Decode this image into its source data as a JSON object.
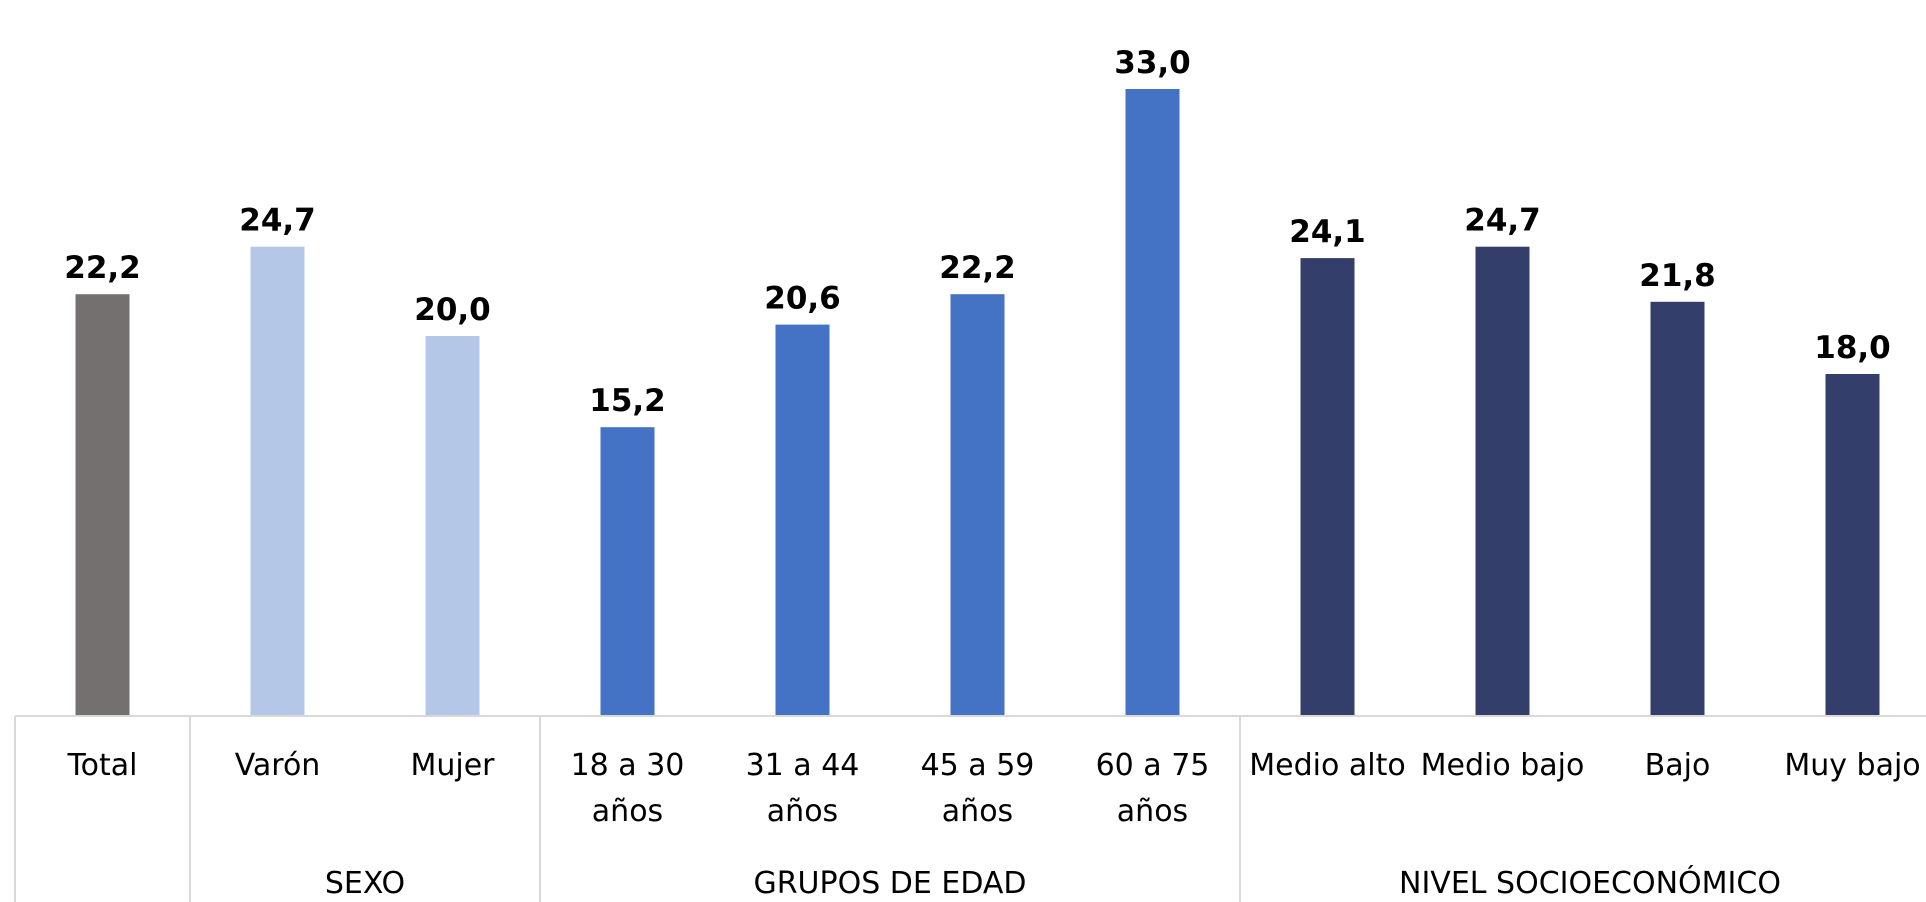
{
  "chart_data": {
    "type": "bar",
    "title": "",
    "xlabel": "",
    "ylabel": "",
    "ylim": [
      0,
      35
    ],
    "grid": false,
    "legend": "none",
    "categories": [
      {
        "label": [
          "Total"
        ],
        "value": 22.2,
        "value_label": "22,2",
        "color": "#757070",
        "group": null
      },
      {
        "label": [
          "Varón"
        ],
        "value": 24.7,
        "value_label": "24,7",
        "color": "#b4c7e7",
        "group": "SEXO"
      },
      {
        "label": [
          "Mujer"
        ],
        "value": 20.0,
        "value_label": "20,0",
        "color": "#b4c7e7",
        "group": "SEXO"
      },
      {
        "label": [
          "18 a 30",
          "años"
        ],
        "value": 15.2,
        "value_label": "15,2",
        "color": "#4472c4",
        "group": "GRUPOS DE EDAD"
      },
      {
        "label": [
          "31 a 44",
          "años"
        ],
        "value": 20.6,
        "value_label": "20,6",
        "color": "#4472c4",
        "group": "GRUPOS DE EDAD"
      },
      {
        "label": [
          "45 a 59",
          "años"
        ],
        "value": 22.2,
        "value_label": "22,2",
        "color": "#4472c4",
        "group": "GRUPOS DE EDAD"
      },
      {
        "label": [
          "60 a 75",
          "años"
        ],
        "value": 33.0,
        "value_label": "33,0",
        "color": "#4472c4",
        "group": "GRUPOS DE EDAD"
      },
      {
        "label": [
          "Medio alto"
        ],
        "value": 24.1,
        "value_label": "24,1",
        "color": "#333f6a",
        "group": "NIVEL SOCIOECONÓMICO"
      },
      {
        "label": [
          "Medio bajo"
        ],
        "value": 24.7,
        "value_label": "24,7",
        "color": "#333f6a",
        "group": "NIVEL SOCIOECONÓMICO"
      },
      {
        "label": [
          "Bajo"
        ],
        "value": 21.8,
        "value_label": "21,8",
        "color": "#333f6a",
        "group": "NIVEL SOCIOECONÓMICO"
      },
      {
        "label": [
          "Muy bajo"
        ],
        "value": 18.0,
        "value_label": "18,0",
        "color": "#333f6a",
        "group": "NIVEL SOCIOECONÓMICO"
      }
    ],
    "groups": [
      "SEXO",
      "GRUPOS DE EDAD",
      "NIVEL SOCIOECONÓMICO"
    ]
  }
}
